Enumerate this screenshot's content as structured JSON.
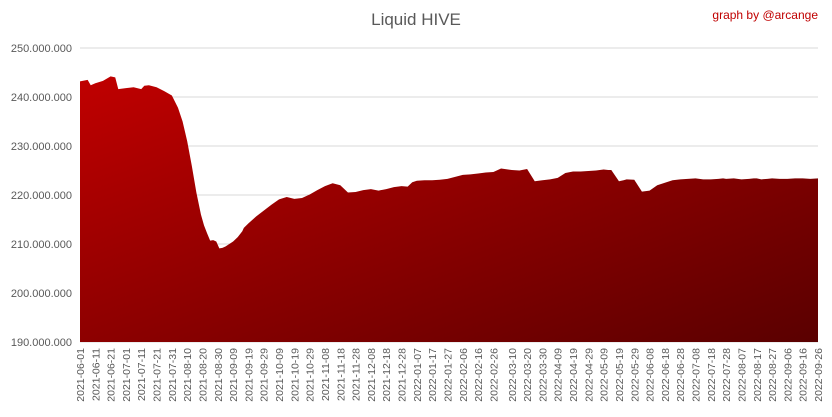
{
  "chart_data": {
    "type": "area",
    "title": "Liquid HIVE",
    "credit": "graph by @arcange",
    "xlabel": "",
    "ylabel": "",
    "ylim": [
      190000000,
      250000000
    ],
    "y_ticks": [
      "190.000.000",
      "200.000.000",
      "210.000.000",
      "220.000.000",
      "230.000.000",
      "240.000.000",
      "250.000.000"
    ],
    "x_ticks": [
      "2021-06-01",
      "2021-06-11",
      "2021-06-21",
      "2021-07-01",
      "2021-07-11",
      "2021-07-21",
      "2021-07-31",
      "2021-08-10",
      "2021-08-20",
      "2021-08-30",
      "2021-09-09",
      "2021-09-19",
      "2021-09-29",
      "2021-10-09",
      "2021-10-19",
      "2021-10-29",
      "2021-11-08",
      "2021-11-18",
      "2021-11-28",
      "2021-12-08",
      "2021-12-18",
      "2021-12-28",
      "2022-01-07",
      "2022-01-17",
      "2022-01-27",
      "2022-02-06",
      "2022-02-16",
      "2022-02-26",
      "2022-03-10",
      "2022-03-20",
      "2022-03-30",
      "2022-04-09",
      "2022-04-19",
      "2022-04-29",
      "2022-05-09",
      "2022-05-19",
      "2022-05-29",
      "2022-06-08",
      "2022-06-18",
      "2022-06-28",
      "2022-07-08",
      "2022-07-18",
      "2022-07-28",
      "2022-08-07",
      "2022-08-17",
      "2022-08-27",
      "2022-09-06",
      "2022-09-16",
      "2022-09-26"
    ],
    "grid": true,
    "legend": "none",
    "colors": {
      "fill_top": "#c00000",
      "fill_bottom": "#5a0000",
      "grid": "#d9d9d9",
      "text": "#595959",
      "credit": "#c00000"
    },
    "series": [
      {
        "x": [
          "2021-06-01",
          "2021-06-06",
          "2021-06-08",
          "2021-06-11",
          "2021-06-16",
          "2021-06-21",
          "2021-06-24",
          "2021-06-26",
          "2021-07-01",
          "2021-07-06",
          "2021-07-11",
          "2021-07-13",
          "2021-07-16",
          "2021-07-21",
          "2021-07-26",
          "2021-07-31",
          "2021-08-04",
          "2021-08-07",
          "2021-08-10",
          "2021-08-13",
          "2021-08-16",
          "2021-08-19",
          "2021-08-21",
          "2021-08-23",
          "2021-08-25",
          "2021-08-27",
          "2021-08-29",
          "2021-08-31",
          "2021-09-02",
          "2021-09-04",
          "2021-09-06",
          "2021-09-09",
          "2021-09-12",
          "2021-09-15",
          "2021-09-16",
          "2021-09-19",
          "2021-09-24",
          "2021-09-29",
          "2021-10-04",
          "2021-10-09",
          "2021-10-14",
          "2021-10-19",
          "2021-10-24",
          "2021-10-29",
          "2021-11-03",
          "2021-11-08",
          "2021-11-13",
          "2021-11-18",
          "2021-11-23",
          "2021-11-28",
          "2021-12-03",
          "2021-12-08",
          "2021-12-13",
          "2021-12-18",
          "2021-12-23",
          "2021-12-28",
          "2022-01-01",
          "2022-01-04",
          "2022-01-07",
          "2022-01-12",
          "2022-01-17",
          "2022-01-22",
          "2022-01-27",
          "2022-02-01",
          "2022-02-06",
          "2022-02-11",
          "2022-02-16",
          "2022-02-21",
          "2022-02-26",
          "2022-03-03",
          "2022-03-10",
          "2022-03-15",
          "2022-03-20",
          "2022-03-25",
          "2022-03-30",
          "2022-04-04",
          "2022-04-09",
          "2022-04-14",
          "2022-04-19",
          "2022-04-24",
          "2022-04-29",
          "2022-05-04",
          "2022-05-09",
          "2022-05-12",
          "2022-05-14",
          "2022-05-19",
          "2022-05-22",
          "2022-05-24",
          "2022-05-29",
          "2022-06-03",
          "2022-06-08",
          "2022-06-13",
          "2022-06-18",
          "2022-06-23",
          "2022-06-28",
          "2022-07-03",
          "2022-07-08",
          "2022-07-13",
          "2022-07-18",
          "2022-07-23",
          "2022-07-26",
          "2022-07-28",
          "2022-08-02",
          "2022-08-07",
          "2022-08-12",
          "2022-08-15",
          "2022-08-17",
          "2022-08-20",
          "2022-08-24",
          "2022-08-27",
          "2022-09-01",
          "2022-09-06",
          "2022-09-11",
          "2022-09-16",
          "2022-09-21",
          "2022-09-26"
        ],
        "values": [
          243200000,
          243500000,
          242400000,
          242800000,
          243300000,
          244200000,
          244000000,
          241600000,
          241800000,
          242000000,
          241600000,
          242300000,
          242400000,
          242000000,
          241200000,
          240300000,
          237800000,
          235000000,
          231000000,
          226000000,
          220500000,
          216000000,
          213800000,
          212200000,
          210700000,
          210800000,
          210500000,
          209100000,
          209200000,
          209500000,
          209900000,
          210500000,
          211400000,
          212600000,
          213300000,
          214200000,
          215600000,
          216800000,
          218000000,
          219100000,
          219600000,
          219200000,
          219400000,
          220100000,
          221000000,
          221800000,
          222400000,
          222000000,
          220500000,
          220600000,
          221000000,
          221200000,
          220900000,
          221200000,
          221600000,
          221800000,
          221700000,
          222600000,
          222900000,
          223000000,
          223000000,
          223100000,
          223300000,
          223700000,
          224100000,
          224200000,
          224400000,
          224600000,
          224700000,
          225400000,
          225100000,
          225000000,
          225300000,
          222800000,
          223000000,
          223200000,
          223500000,
          224500000,
          224800000,
          224800000,
          224900000,
          225000000,
          225200000,
          225100000,
          225100000,
          222800000,
          223000000,
          223200000,
          223100000,
          220700000,
          220900000,
          222000000,
          222500000,
          223000000,
          223200000,
          223300000,
          223400000,
          223200000,
          223200000,
          223300000,
          223400000,
          223300000,
          223400000,
          223200000,
          223300000,
          223400000,
          223400000,
          223200000,
          223300000,
          223400000,
          223300000,
          223300000,
          223400000,
          223400000,
          223300000,
          223400000
        ]
      }
    ]
  }
}
